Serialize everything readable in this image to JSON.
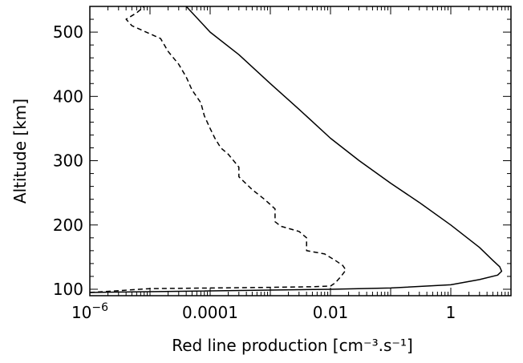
{
  "chart_data": {
    "type": "line",
    "title": "",
    "xlabel": "Red line production [cm⁻³.s⁻¹]",
    "ylabel": "Altitude [km]",
    "x_scale": "log",
    "xlim": [
      1e-06,
      10
    ],
    "ylim": [
      90,
      540
    ],
    "x_ticks": [
      {
        "value": 1e-06,
        "label": "10",
        "sup": "−6"
      },
      {
        "value": 0.0001,
        "label": "0.0001",
        "sup": ""
      },
      {
        "value": 0.01,
        "label": "0.01",
        "sup": ""
      },
      {
        "value": 1,
        "label": "1",
        "sup": ""
      }
    ],
    "y_ticks": [
      {
        "value": 100,
        "label": "100"
      },
      {
        "value": 200,
        "label": "200"
      },
      {
        "value": 300,
        "label": "300"
      },
      {
        "value": 400,
        "label": "400"
      },
      {
        "value": 500,
        "label": "500"
      }
    ],
    "grid": false,
    "series": [
      {
        "style": "solid",
        "color": "#000000",
        "points": [
          [
            1e-06,
            95
          ],
          [
            0.01,
            100
          ],
          [
            0.1,
            102
          ],
          [
            1,
            107
          ],
          [
            3,
            115
          ],
          [
            6,
            122
          ],
          [
            7,
            128
          ],
          [
            6.5,
            135
          ],
          [
            5,
            145
          ],
          [
            3,
            165
          ],
          [
            1,
            200
          ],
          [
            0.3,
            235
          ],
          [
            0.1,
            265
          ],
          [
            0.03,
            300
          ],
          [
            0.01,
            335
          ],
          [
            0.003,
            380
          ],
          [
            0.001,
            420
          ],
          [
            0.0003,
            465
          ],
          [
            0.0001,
            500
          ],
          [
            4e-05,
            540
          ]
        ]
      },
      {
        "style": "dashed",
        "color": "#000000",
        "points": [
          [
            1e-06,
            95
          ],
          [
            1e-05,
            101
          ],
          [
            0.0001,
            102
          ],
          [
            0.001,
            103
          ],
          [
            0.005,
            104
          ],
          [
            0.01,
            105
          ],
          [
            0.012,
            110
          ],
          [
            0.015,
            120
          ],
          [
            0.018,
            130
          ],
          [
            0.016,
            137
          ],
          [
            0.012,
            145
          ],
          [
            0.008,
            155
          ],
          [
            0.004,
            160
          ],
          [
            0.004,
            170
          ],
          [
            0.004,
            180
          ],
          [
            0.003,
            190
          ],
          [
            0.0015,
            198
          ],
          [
            0.0012,
            205
          ],
          [
            0.0012,
            225
          ],
          [
            0.0008,
            240
          ],
          [
            0.0005,
            255
          ],
          [
            0.0003,
            275
          ],
          [
            0.0003,
            290
          ],
          [
            0.0002,
            310
          ],
          [
            0.00015,
            320
          ],
          [
            0.00012,
            335
          ],
          [
            0.0001,
            350
          ],
          [
            8e-05,
            370
          ],
          [
            7e-05,
            390
          ],
          [
            5e-05,
            410
          ],
          [
            4e-05,
            430
          ],
          [
            3e-05,
            450
          ],
          [
            2e-05,
            470
          ],
          [
            1.5e-05,
            490
          ],
          [
            5e-06,
            510
          ],
          [
            4e-06,
            520
          ],
          [
            6e-06,
            530
          ],
          [
            8e-06,
            540
          ]
        ]
      }
    ]
  }
}
